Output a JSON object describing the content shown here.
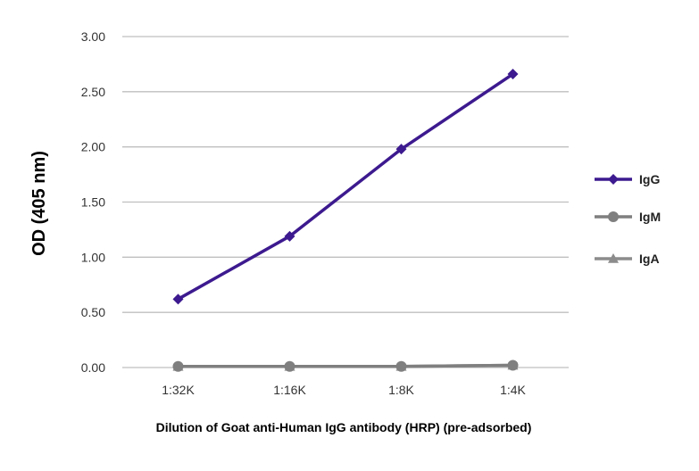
{
  "chart_data": {
    "type": "line",
    "title": "",
    "xlabel": "Dilution of Goat anti-Human IgG antibody (HRP) (pre-adsorbed)",
    "ylabel": "OD (405 nm)",
    "categories": [
      "1:32K",
      "1:16K",
      "1:8K",
      "1:4K"
    ],
    "ylim": [
      0,
      3
    ],
    "yticks": [
      "0.00",
      "0.50",
      "1.00",
      "1.50",
      "2.00",
      "2.50",
      "3.00"
    ],
    "ytick_values": [
      0,
      0.5,
      1,
      1.5,
      2,
      2.5,
      3
    ],
    "grid": "horizontal",
    "legend_position": "right",
    "series": [
      {
        "name": "IgG",
        "marker": "diamond",
        "color": "#3d1a8f",
        "values": [
          0.62,
          1.19,
          1.98,
          2.66
        ]
      },
      {
        "name": "IgM",
        "marker": "circle",
        "color": "#7f7f7f",
        "values": [
          0.01,
          0.01,
          0.01,
          0.02
        ]
      },
      {
        "name": "IgA",
        "marker": "triangle",
        "color": "#8c8c8c",
        "values": [
          0.01,
          0.01,
          0.01,
          0.02
        ]
      }
    ]
  }
}
